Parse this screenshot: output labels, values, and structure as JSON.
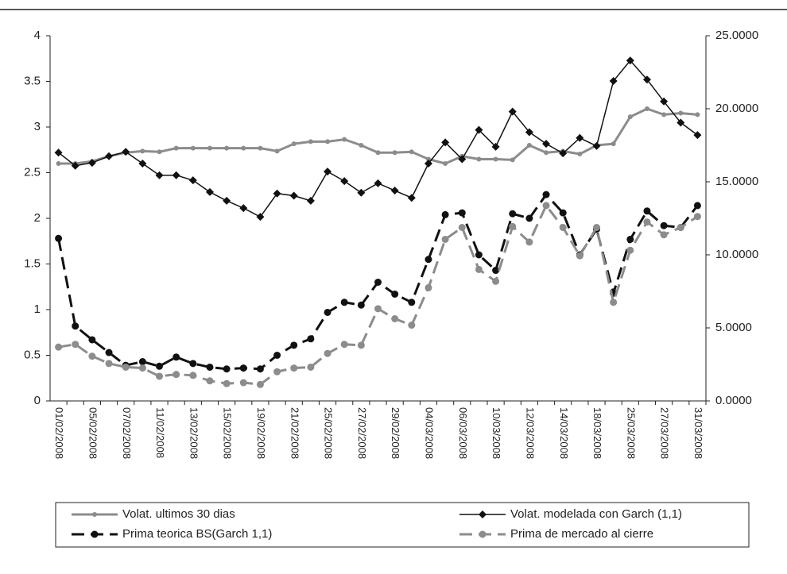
{
  "chart_data": {
    "type": "line",
    "categories": [
      "01/02/2008",
      null,
      "05/02/2008",
      null,
      "07/02/2008",
      null,
      "11/02/2008",
      null,
      "13/02/2008",
      null,
      "15/02/2008",
      null,
      "19/02/2008",
      null,
      "21/02/2008",
      null,
      "25/02/2008",
      null,
      "27/02/2008",
      null,
      "29/02/2008",
      null,
      "04/03/2008",
      null,
      "06/03/2008",
      null,
      "10/03/2008",
      null,
      "12/03/2008",
      null,
      "14/03/2008",
      null,
      "18/03/2008",
      null,
      "25/03/2008",
      null,
      "27/03/2008",
      null,
      "31/03/2008"
    ],
    "series": [
      {
        "name": "Volat. ultimos 30 dias",
        "color": "#8c8c8c",
        "axis": "y2",
        "dash": false,
        "marker": "circle",
        "values": [
          16.25,
          16.25,
          16.4,
          16.75,
          17.0,
          17.1,
          17.05,
          17.3,
          17.3,
          17.3,
          17.3,
          17.3,
          17.3,
          17.1,
          17.6,
          17.75,
          17.75,
          17.9,
          17.5,
          17.0,
          17.0,
          17.05,
          16.55,
          16.25,
          16.75,
          16.55,
          16.55,
          16.5,
          17.5,
          17.0,
          17.1,
          16.9,
          17.5,
          17.6,
          19.45,
          20.0,
          19.6,
          19.7,
          19.6
        ]
      },
      {
        "name": "Volat. modelada con Garch (1,1)",
        "color": "#111111",
        "axis": "y2",
        "dash": false,
        "marker": "diamond",
        "values": [
          17.0,
          16.1,
          16.3,
          16.75,
          17.05,
          16.25,
          15.45,
          15.45,
          15.1,
          14.3,
          13.7,
          13.2,
          12.6,
          14.2,
          14.05,
          13.7,
          15.7,
          15.05,
          14.25,
          14.9,
          14.4,
          13.9,
          16.25,
          17.7,
          16.55,
          18.55,
          17.4,
          19.8,
          18.4,
          17.6,
          16.95,
          18.0,
          17.45,
          21.9,
          23.3,
          22.0,
          20.5,
          19.05,
          18.2
        ]
      },
      {
        "name": "Prima teorica BS(Garch 1,1)",
        "color": "#111111",
        "axis": "y",
        "dash": true,
        "marker": "dot",
        "values": [
          1.78,
          0.82,
          0.67,
          0.53,
          0.39,
          0.43,
          0.38,
          0.48,
          0.41,
          0.37,
          0.35,
          0.36,
          0.35,
          0.5,
          0.61,
          0.68,
          0.97,
          1.08,
          1.05,
          1.3,
          1.17,
          1.08,
          1.55,
          2.04,
          2.06,
          1.6,
          1.43,
          2.05,
          2.0,
          2.26,
          2.06,
          1.6,
          1.88,
          1.18,
          1.77,
          2.08,
          1.92,
          1.9,
          2.14
        ]
      },
      {
        "name": "Prima de mercado al cierre",
        "color": "#8c8c8c",
        "axis": "y",
        "dash": true,
        "marker": "dot",
        "values": [
          0.59,
          0.62,
          0.49,
          0.41,
          0.37,
          0.36,
          0.27,
          0.29,
          0.28,
          0.22,
          0.19,
          0.2,
          0.18,
          0.32,
          0.36,
          0.37,
          0.52,
          0.62,
          0.61,
          1.01,
          0.9,
          0.83,
          1.24,
          1.77,
          1.9,
          1.44,
          1.31,
          1.91,
          1.74,
          2.14,
          1.9,
          1.59,
          1.9,
          1.08,
          1.65,
          1.96,
          1.82,
          1.9,
          2.02
        ]
      }
    ],
    "ylim": [
      0,
      4
    ],
    "yticks": [
      0,
      0.5,
      1,
      1.5,
      2,
      2.5,
      3,
      3.5,
      4
    ],
    "y2lim": [
      0,
      25
    ],
    "y2ticks": [
      {
        "value": 0,
        "label": "0.0000"
      },
      {
        "value": 5,
        "label": "5.0000"
      },
      {
        "value": 10,
        "label": "10.0000"
      },
      {
        "value": 15,
        "label": "15.0000"
      },
      {
        "value": 20,
        "label": "20.0000"
      },
      {
        "value": 25,
        "label": "25.0000"
      }
    ],
    "grid": false,
    "legend": "bottom"
  }
}
